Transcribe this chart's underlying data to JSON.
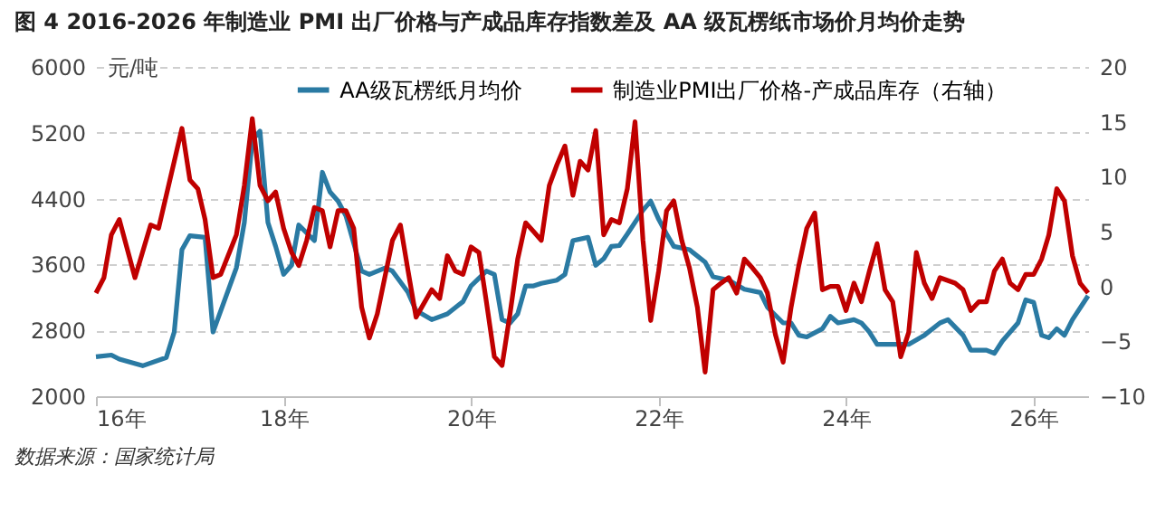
{
  "chart_data": {
    "type": "line",
    "title": "图 4 2016-2026 年制造业 PMI 出厂价格与产成品库存指数差及 AA 级瓦楞纸市场价月均价走势",
    "ylabel": "元/吨",
    "annotations": [
      "数据来源：国家统计局"
    ],
    "xlim": [
      "2016-01",
      "2026-08"
    ],
    "xticks": [
      {
        "value": "2016-01",
        "label": "16年"
      },
      {
        "value": "2018-01",
        "label": "18年"
      },
      {
        "value": "2020-01",
        "label": "20年"
      },
      {
        "value": "2022-01",
        "label": "22年"
      },
      {
        "value": "2024-01",
        "label": "24年"
      },
      {
        "value": "2026-01",
        "label": "26年"
      }
    ],
    "ylim": [
      2000,
      6000
    ],
    "yticks": [
      2000,
      2800,
      3600,
      4400,
      5200,
      6000
    ],
    "y2lim": [
      -10,
      20
    ],
    "y2ticks": [
      -10,
      -5,
      0,
      5,
      10,
      15,
      20
    ],
    "grid": "y",
    "legend": "top",
    "marker": "none",
    "line_style": "solid",
    "series": [
      {
        "name": "AA级瓦楞纸月均价",
        "color": "#2a7aa3",
        "x": [
          "2016-01",
          "2016-03",
          "2016-04",
          "2016-07",
          "2016-10",
          "2016-11",
          "2016-12",
          "2017-01",
          "2017-03",
          "2017-04",
          "2017-07",
          "2017-08",
          "2017-09",
          "2017-10",
          "2017-11",
          "2017-12",
          "2018-01",
          "2018-02",
          "2018-03",
          "2018-05",
          "2018-06",
          "2018-07",
          "2018-08",
          "2018-09",
          "2018-11",
          "2018-12",
          "2019-02",
          "2019-03",
          "2019-05",
          "2019-06",
          "2019-08",
          "2019-10",
          "2019-12",
          "2020-01",
          "2020-03",
          "2020-04",
          "2020-05",
          "2020-06",
          "2020-07",
          "2020-08",
          "2020-09",
          "2020-10",
          "2020-12",
          "2021-01",
          "2021-02",
          "2021-04",
          "2021-05",
          "2021-06",
          "2021-07",
          "2021-08",
          "2021-09",
          "2021-11",
          "2021-12",
          "2022-01",
          "2022-02",
          "2022-03",
          "2022-05",
          "2022-07",
          "2022-08",
          "2022-10",
          "2022-12",
          "2023-02",
          "2023-03",
          "2023-05",
          "2023-06",
          "2023-07",
          "2023-08",
          "2023-10",
          "2023-11",
          "2023-12",
          "2024-02",
          "2024-03",
          "2024-04",
          "2024-05",
          "2024-08",
          "2024-09",
          "2024-11",
          "2025-01",
          "2025-02",
          "2025-04",
          "2025-05",
          "2025-07",
          "2025-08",
          "2025-09",
          "2025-11",
          "2025-12",
          "2026-01",
          "2026-02",
          "2026-03",
          "2026-04",
          "2026-05",
          "2026-06",
          "2026-08"
        ],
        "values": [
          2480,
          2500,
          2450,
          2370,
          2470,
          2780,
          3780,
          3950,
          3930,
          2780,
          3560,
          4110,
          5110,
          5220,
          4110,
          3820,
          3480,
          3590,
          4080,
          3890,
          4720,
          4480,
          4370,
          4190,
          3520,
          3480,
          3560,
          3520,
          3260,
          3040,
          2930,
          3000,
          3150,
          3340,
          3520,
          3480,
          2930,
          2890,
          3000,
          3340,
          3340,
          3370,
          3410,
          3480,
          3890,
          3930,
          3590,
          3670,
          3820,
          3830,
          3970,
          4260,
          4370,
          4150,
          3970,
          3820,
          3780,
          3630,
          3450,
          3410,
          3300,
          3260,
          3080,
          2890,
          2890,
          2740,
          2720,
          2820,
          2970,
          2890,
          2930,
          2890,
          2780,
          2630,
          2630,
          2630,
          2740,
          2890,
          2930,
          2740,
          2560,
          2560,
          2520,
          2670,
          2890,
          3170,
          3140,
          2740,
          2710,
          2820,
          2740,
          2930,
          3220
        ]
      },
      {
        "name": "制造业PMI出厂价格-产成品库存（右轴）",
        "color": "#c00000",
        "axis": "y2",
        "x": [
          "2016-01",
          "2016-02",
          "2016-03",
          "2016-04",
          "2016-06",
          "2016-08",
          "2016-09",
          "2016-11",
          "2016-12",
          "2017-01",
          "2017-02",
          "2017-03",
          "2017-04",
          "2017-05",
          "2017-07",
          "2017-08",
          "2017-09",
          "2017-10",
          "2017-11",
          "2017-12",
          "2018-01",
          "2018-02",
          "2018-03",
          "2018-04",
          "2018-05",
          "2018-06",
          "2018-07",
          "2018-08",
          "2018-09",
          "2018-10",
          "2018-11",
          "2018-12",
          "2019-01",
          "2019-03",
          "2019-04",
          "2019-05",
          "2019-06",
          "2019-08",
          "2019-09",
          "2019-10",
          "2019-11",
          "2019-12",
          "2020-01",
          "2020-02",
          "2020-03",
          "2020-04",
          "2020-05",
          "2020-06",
          "2020-07",
          "2020-08",
          "2020-09",
          "2020-10",
          "2020-11",
          "2020-12",
          "2021-01",
          "2021-02",
          "2021-03",
          "2021-04",
          "2021-05",
          "2021-06",
          "2021-07",
          "2021-08",
          "2021-09",
          "2021-10",
          "2021-11",
          "2021-12",
          "2022-01",
          "2022-02",
          "2022-03",
          "2022-04",
          "2022-05",
          "2022-06",
          "2022-07",
          "2022-08",
          "2022-09",
          "2022-10",
          "2022-11",
          "2022-12",
          "2023-01",
          "2023-02",
          "2023-03",
          "2023-04",
          "2023-05",
          "2023-06",
          "2023-07",
          "2023-08",
          "2023-09",
          "2023-10",
          "2023-11",
          "2023-12",
          "2024-01",
          "2024-02",
          "2024-03",
          "2024-04",
          "2024-05",
          "2024-06",
          "2024-07",
          "2024-08",
          "2024-09",
          "2024-10",
          "2024-11",
          "2024-12",
          "2025-01",
          "2025-03",
          "2025-04",
          "2025-05",
          "2025-06",
          "2025-07",
          "2025-08",
          "2025-09",
          "2025-10",
          "2025-11",
          "2025-12",
          "2026-01",
          "2026-02",
          "2026-03",
          "2026-04",
          "2026-05",
          "2026-06",
          "2026-07",
          "2026-08"
        ],
        "values": [
          -0.6,
          0.8,
          4.7,
          6.1,
          0.8,
          5.6,
          5.3,
          11.4,
          14.4,
          9.7,
          8.9,
          6.1,
          0.8,
          1.1,
          4.7,
          9.2,
          15.3,
          9.2,
          7.8,
          8.6,
          5.3,
          3.1,
          1.9,
          4.2,
          7.2,
          6.9,
          3.6,
          6.9,
          6.9,
          5.3,
          -1.9,
          -4.7,
          -2.5,
          4.2,
          5.6,
          1.4,
          -2.8,
          -0.3,
          -1.1,
          2.8,
          1.4,
          1.1,
          3.6,
          3.1,
          -1.4,
          -6.4,
          -7.2,
          -2.5,
          2.5,
          5.8,
          5.0,
          4.2,
          9.2,
          11.1,
          12.8,
          8.3,
          11.4,
          10.6,
          14.2,
          4.7,
          6.1,
          5.8,
          8.9,
          15.0,
          4.2,
          -3.1,
          1.4,
          6.9,
          7.8,
          4.2,
          1.7,
          -1.9,
          -7.8,
          -0.3,
          0.3,
          0.8,
          -0.6,
          2.5,
          1.7,
          0.8,
          -0.6,
          -4.4,
          -6.9,
          -1.9,
          1.9,
          5.3,
          6.7,
          -0.3,
          0,
          0,
          -2.2,
          0.3,
          -1.4,
          1.4,
          3.9,
          -0.3,
          -1.4,
          -6.4,
          -4.2,
          3.1,
          0.3,
          -1.1,
          0.8,
          0.3,
          -0.3,
          -2.2,
          -1.4,
          -1.4,
          1.4,
          2.5,
          0.3,
          -0.3,
          1.1,
          1.1,
          2.5,
          4.7,
          8.9,
          7.8,
          2.8,
          0.3,
          -0.6
        ]
      }
    ]
  }
}
